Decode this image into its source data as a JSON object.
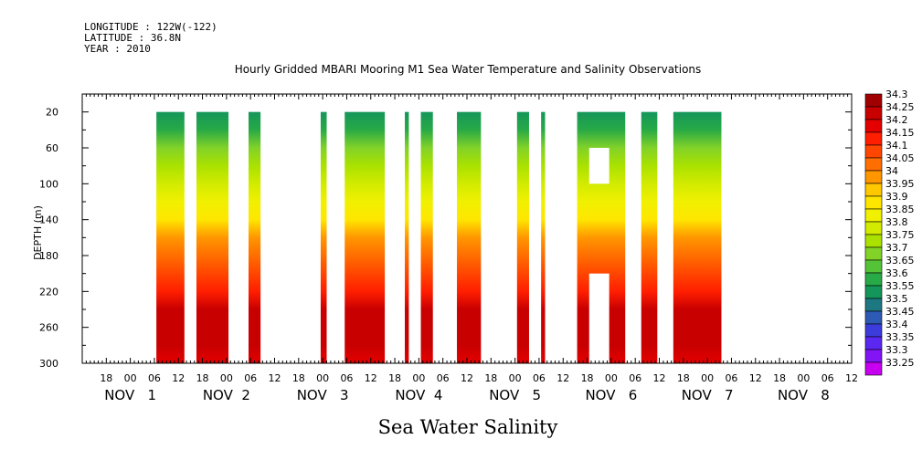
{
  "header": {
    "longitude": "LONGITUDE : 122W(-122)",
    "latitude": "LATITUDE : 36.8N",
    "year": "YEAR : 2010"
  },
  "chart_data": {
    "type": "heatmap",
    "title": "Hourly Gridded MBARI Mooring M1 Sea Water Temperature and Salinity Observations",
    "xlabel": "Sea Water Salinity",
    "ylabel": "DEPTH (m)",
    "x_unit": "hours since NOV 1 00:00",
    "xlim": [
      -12,
      180
    ],
    "ylim": [
      300,
      0
    ],
    "yticks": [
      20,
      60,
      100,
      140,
      180,
      220,
      260,
      300
    ],
    "hour_ticks": [
      {
        "h": -6,
        "label": "18"
      },
      {
        "h": 0,
        "label": "00"
      },
      {
        "h": 6,
        "label": "06"
      },
      {
        "h": 12,
        "label": "12"
      },
      {
        "h": 18,
        "label": "18"
      },
      {
        "h": 24,
        "label": "00"
      },
      {
        "h": 30,
        "label": "06"
      },
      {
        "h": 36,
        "label": "12"
      },
      {
        "h": 42,
        "label": "18"
      },
      {
        "h": 48,
        "label": "00"
      },
      {
        "h": 54,
        "label": "06"
      },
      {
        "h": 60,
        "label": "12"
      },
      {
        "h": 66,
        "label": "18"
      },
      {
        "h": 72,
        "label": "00"
      },
      {
        "h": 78,
        "label": "06"
      },
      {
        "h": 84,
        "label": "12"
      },
      {
        "h": 90,
        "label": "18"
      },
      {
        "h": 96,
        "label": "00"
      },
      {
        "h": 102,
        "label": "06"
      },
      {
        "h": 108,
        "label": "12"
      },
      {
        "h": 114,
        "label": "18"
      },
      {
        "h": 120,
        "label": "00"
      },
      {
        "h": 126,
        "label": "06"
      },
      {
        "h": 132,
        "label": "12"
      },
      {
        "h": 138,
        "label": "18"
      },
      {
        "h": 144,
        "label": "00"
      },
      {
        "h": 150,
        "label": "06"
      },
      {
        "h": 156,
        "label": "12"
      },
      {
        "h": 162,
        "label": "18"
      },
      {
        "h": 168,
        "label": "00"
      },
      {
        "h": 174,
        "label": "06"
      },
      {
        "h": 180,
        "label": "12"
      }
    ],
    "day_labels": [
      {
        "h": 0,
        "label": "NOV   1"
      },
      {
        "h": 24,
        "label": "NOV  2"
      },
      {
        "h": 48,
        "label": "NOV   3"
      },
      {
        "h": 72,
        "label": "NOV  4"
      },
      {
        "h": 96,
        "label": "NOV   5"
      },
      {
        "h": 120,
        "label": "NOV   6"
      },
      {
        "h": 144,
        "label": "NOV   7"
      },
      {
        "h": 168,
        "label": "NOV   8"
      }
    ],
    "data_segments": [
      [
        6.5,
        13.5
      ],
      [
        16.5,
        24.5
      ],
      [
        29.5,
        32.5
      ],
      [
        47.5,
        49
      ],
      [
        53.5,
        63.5
      ],
      [
        68.5,
        69.5
      ],
      [
        72.5,
        75.5
      ],
      [
        81.5,
        87.5
      ],
      [
        96.5,
        99.5
      ],
      [
        102.5,
        103.5
      ],
      [
        111.5,
        123.5
      ],
      [
        127.5,
        131.5
      ],
      [
        135.5,
        147.5
      ]
    ],
    "gaps": [
      {
        "x": [
          114.5,
          119.5
        ],
        "y": [
          60,
          100
        ]
      },
      {
        "x": [
          114.5,
          119.5
        ],
        "y": [
          200,
          300
        ]
      }
    ],
    "profile": {
      "depth": [
        20,
        40,
        60,
        80,
        100,
        120,
        140,
        160,
        180,
        200,
        220,
        240,
        260,
        280,
        300
      ],
      "salinity": [
        33.55,
        33.62,
        33.69,
        33.74,
        33.79,
        33.84,
        33.9,
        33.98,
        34.05,
        34.11,
        34.17,
        34.24,
        34.26,
        34.24,
        34.2
      ]
    },
    "colorbar": {
      "levels": [
        "34.3",
        "34.25",
        "34.2",
        "34.15",
        "34.1",
        "34.05",
        "34",
        "33.95",
        "33.9",
        "33.85",
        "33.8",
        "33.75",
        "33.7",
        "33.65",
        "33.6",
        "33.55",
        "33.5",
        "33.45",
        "33.4",
        "33.35",
        "33.3",
        "33.25"
      ],
      "colors": [
        "#a00000",
        "#c80000",
        "#e40000",
        "#ff1e00",
        "#ff4600",
        "#ff6e00",
        "#ff9600",
        "#ffc800",
        "#ffe600",
        "#f0f000",
        "#d2eb00",
        "#aae100",
        "#82d228",
        "#55c337",
        "#28aa46",
        "#14965a",
        "#1e7882",
        "#2d5ab4",
        "#3c3cdc",
        "#5a28f0",
        "#8214f5",
        "#c800f0"
      ]
    }
  }
}
